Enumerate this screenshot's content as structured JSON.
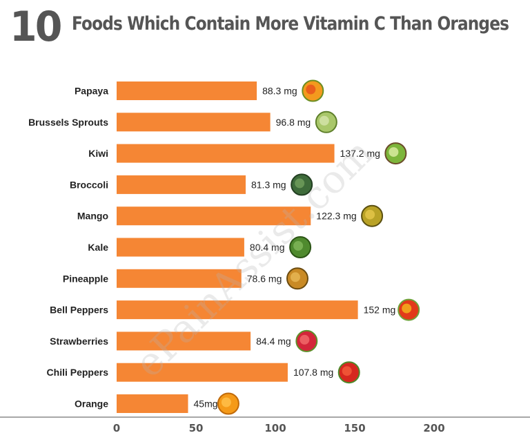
{
  "title": {
    "number": "10",
    "text": "Foods Which Contain More Vitamin C Than Oranges"
  },
  "watermark": "ePainAssist.com",
  "chart_data": {
    "type": "bar",
    "orientation": "horizontal",
    "categories": [
      "Papaya",
      "Brussels Sprouts",
      "Kiwi",
      "Broccoli",
      "Mango",
      "Kale",
      "Pineapple",
      "Bell Peppers",
      "Strawberries",
      "Chili Peppers",
      "Orange"
    ],
    "values": [
      88.3,
      96.8,
      137.2,
      81.3,
      122.3,
      80.4,
      78.6,
      152,
      84.4,
      107.8,
      45
    ],
    "value_labels": [
      "88.3 mg",
      "96.8 mg",
      "137.2 mg",
      "81.3 mg",
      "122.3 mg",
      "80.4 mg",
      "78.6 mg",
      "152 mg",
      "84.4 mg",
      "107.8 mg",
      "45mg"
    ],
    "x_ticks": [
      0,
      50,
      100,
      150,
      200
    ],
    "xlim": [
      0,
      200
    ],
    "bar_color": "#F58634",
    "grid": false,
    "icons": [
      "papaya-icon",
      "brussels-sprouts-icon",
      "kiwi-icon",
      "broccoli-icon",
      "mango-icon",
      "kale-icon",
      "pineapple-icon",
      "bell-pepper-icon",
      "strawberry-icon",
      "chili-pepper-icon",
      "orange-icon"
    ]
  }
}
